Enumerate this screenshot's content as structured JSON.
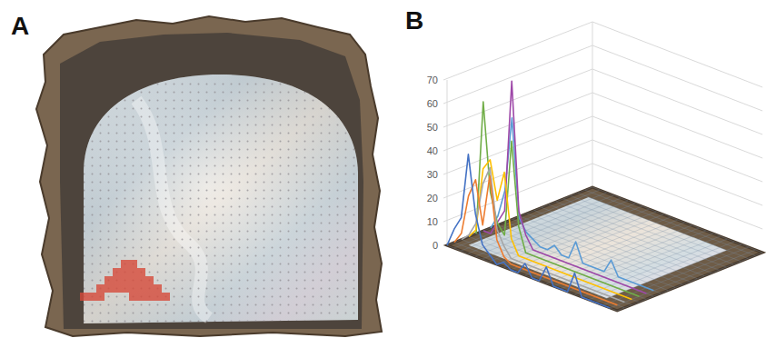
{
  "panel_labels": [
    "A",
    "B"
  ],
  "chart_data": [
    {
      "type": "heatmap",
      "grid": true,
      "color": "#d64a3a",
      "cells": [
        [
          5,
          22
        ],
        [
          6,
          22
        ],
        [
          4,
          23
        ],
        [
          5,
          23
        ],
        [
          6,
          23
        ],
        [
          7,
          23
        ],
        [
          3,
          24
        ],
        [
          4,
          24
        ],
        [
          5,
          24
        ],
        [
          6,
          24
        ],
        [
          7,
          24
        ],
        [
          8,
          24
        ],
        [
          2,
          25
        ],
        [
          3,
          25
        ],
        [
          4,
          25
        ],
        [
          5,
          25
        ],
        [
          6,
          25
        ],
        [
          7,
          25
        ],
        [
          8,
          25
        ],
        [
          9,
          25
        ],
        [
          0,
          26
        ],
        [
          1,
          26
        ],
        [
          2,
          26
        ],
        [
          6,
          26
        ],
        [
          7,
          26
        ],
        [
          8,
          26
        ],
        [
          9,
          26
        ],
        [
          10,
          26
        ]
      ]
    },
    {
      "type": "line",
      "ylim": [
        0,
        70
      ],
      "yticks": [
        0,
        10,
        20,
        30,
        40,
        50,
        60,
        70
      ],
      "grid": true,
      "series": [
        {
          "color": "#4472c4",
          "values": [
            0,
            8,
            14,
            42,
            18,
            6,
            3,
            0,
            2,
            0,
            0,
            5,
            0,
            0,
            7,
            0,
            0,
            0,
            9,
            0,
            0,
            0,
            0,
            0
          ]
        },
        {
          "color": "#ed7d31",
          "values": [
            0,
            5,
            22,
            30,
            12,
            34,
            8,
            2,
            0,
            0,
            0,
            0,
            0,
            0,
            0,
            0,
            0,
            0,
            0,
            0,
            0,
            0,
            0,
            0
          ]
        },
        {
          "color": "#a5a5a5",
          "values": [
            0,
            3,
            9,
            27,
            35,
            10,
            4,
            0,
            0,
            0,
            0,
            0,
            0,
            0,
            0,
            0,
            0,
            0,
            0,
            0,
            0,
            0,
            0,
            0
          ]
        },
        {
          "color": "#ffc000",
          "values": [
            0,
            4,
            31,
            36,
            20,
            33,
            6,
            0,
            0,
            0,
            0,
            0,
            0,
            0,
            0,
            0,
            0,
            0,
            0,
            0,
            0,
            0,
            0,
            0
          ]
        },
        {
          "color": "#70ad47",
          "values": [
            0,
            57,
            20,
            8,
            4,
            45,
            10,
            0,
            0,
            0,
            0,
            0,
            0,
            0,
            0,
            0,
            0,
            0,
            0,
            0,
            0,
            0,
            0,
            0
          ]
        },
        {
          "color": "#9e48a8",
          "values": [
            0,
            0,
            6,
            12,
            68,
            14,
            5,
            0,
            0,
            0,
            0,
            0,
            0,
            0,
            0,
            0,
            0,
            0,
            0,
            0,
            0,
            0,
            0,
            0
          ]
        },
        {
          "color": "#5b9bd5",
          "values": [
            0,
            6,
            18,
            50,
            9,
            4,
            2,
            0,
            0,
            3,
            0,
            0,
            8,
            0,
            0,
            0,
            0,
            6,
            0,
            0,
            0,
            0,
            0,
            0
          ]
        }
      ]
    }
  ]
}
